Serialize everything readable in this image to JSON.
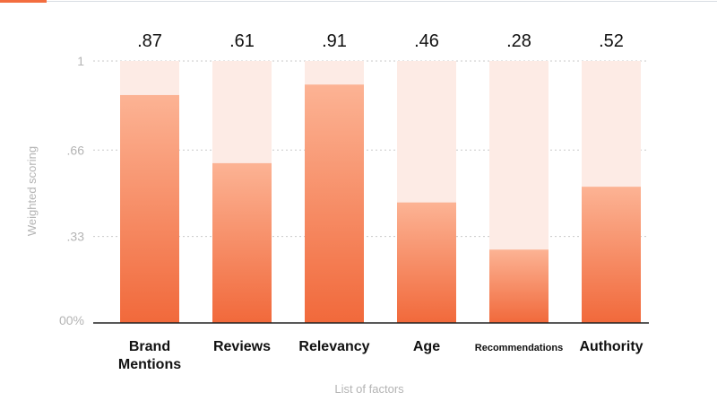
{
  "chart_data": {
    "type": "bar",
    "categories": [
      "Brand Mentions",
      "Reviews",
      "Relevancy",
      "Age",
      "Recommendations",
      "Authority"
    ],
    "values": [
      0.87,
      0.61,
      0.91,
      0.46,
      0.28,
      0.52
    ],
    "value_labels": [
      ".87",
      ".61",
      ".91",
      ".46",
      ".28",
      ".52"
    ],
    "title": "",
    "xlabel": "List of factors",
    "ylabel": "Weighted scoring",
    "ylim": [
      0,
      1
    ],
    "yticks": [
      {
        "value": 0,
        "label": "00%"
      },
      {
        "value": 0.33,
        "label": ".33"
      },
      {
        "value": 0.66,
        "label": ".66"
      },
      {
        "value": 1,
        "label": "1"
      }
    ],
    "grid": true,
    "legend": "none"
  },
  "colors": {
    "bar_top": "#fcb394",
    "bar_bottom": "#f1693b",
    "bar_track": "#fdebe5",
    "accent": "#f36d3f"
  }
}
